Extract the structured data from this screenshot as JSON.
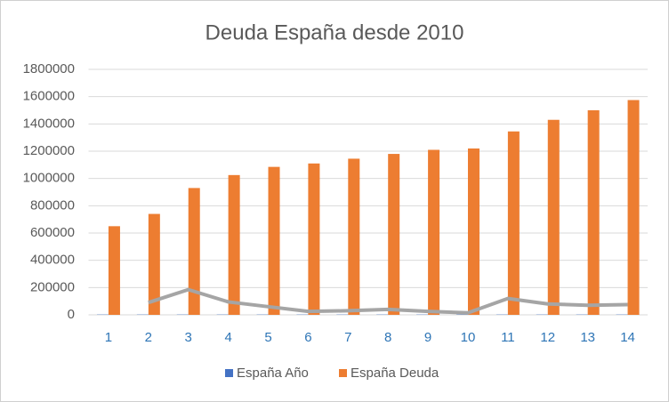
{
  "chart_data": {
    "type": "bar",
    "title": "Deuda España desde 2010",
    "categories": [
      "1",
      "2",
      "3",
      "4",
      "5",
      "6",
      "7",
      "8",
      "9",
      "10",
      "11",
      "12",
      "13",
      "14"
    ],
    "series": [
      {
        "name": "España Año",
        "color": "#4472c4",
        "type": "bar",
        "values": [
          2010,
          2011,
          2012,
          2013,
          2014,
          2015,
          2016,
          2017,
          2018,
          2019,
          2020,
          2021,
          2022,
          2023
        ]
      },
      {
        "name": "España  Deuda",
        "color": "#ed7d31",
        "type": "bar",
        "values": [
          650000,
          740000,
          930000,
          1025000,
          1085000,
          1110000,
          1145000,
          1180000,
          1210000,
          1220000,
          1345000,
          1430000,
          1500000,
          1575000
        ]
      },
      {
        "color": "#a5a5a5",
        "type": "line",
        "values": [
          null,
          90000,
          185000,
          95000,
          60000,
          25000,
          30000,
          40000,
          25000,
          15000,
          120000,
          80000,
          70000,
          75000
        ]
      }
    ],
    "ylim": [
      0,
      1800000
    ],
    "yticks": [
      0,
      200000,
      400000,
      600000,
      800000,
      1000000,
      1200000,
      1400000,
      1600000,
      1800000
    ],
    "grid": true,
    "legend": "bottom"
  }
}
